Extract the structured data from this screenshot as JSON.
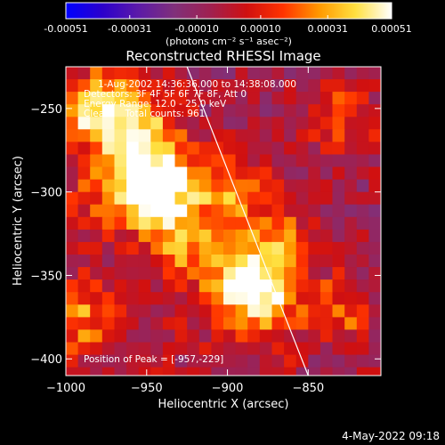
{
  "chart_data": {
    "type": "heatmap",
    "title": "Reconstructed RHESSI Image",
    "xlabel": "Heliocentric X (arcsec)",
    "ylabel": "Heliocentric Y (arcsec)",
    "xlim": [
      -1000,
      -805
    ],
    "ylim": [
      -410,
      -225
    ],
    "xticks": [
      -1000,
      -950,
      -900,
      -850
    ],
    "yticks": [
      -250,
      -300,
      -350,
      -400
    ],
    "colorbar": {
      "ticks": [
        -0.00051,
        -0.00031,
        -0.0001,
        0.0001,
        0.00031,
        0.00051
      ],
      "tick_labels": [
        "-0.00051",
        "-0.00031",
        "-0.00010",
        "0.00010",
        "0.00031",
        "0.00051"
      ],
      "unit_label": "(photons cm⁻² s⁻¹ asec⁻²)",
      "range": [
        -0.00051,
        0.00051
      ],
      "colors": [
        "#0000ff",
        "#2b00cc",
        "#5c1aa8",
        "#80307a",
        "#a02050",
        "#d01010",
        "#ff3300",
        "#ff9900",
        "#ffe040",
        "#ffffff"
      ]
    },
    "annotations": [
      "1-Aug-2002 14:36:36.000 to 14:38:08.000",
      "Detectors: 3F 4F 5F 6F 7F 8F, Att 0",
      "Energy Range: 12.0 - 25.0 keV",
      "Clean     Total counts: 961.",
      "Position of Peak = [-957,-229]"
    ],
    "peak": {
      "x": -957,
      "y": -229
    },
    "limb_line": [
      {
        "x": -925,
        "y": -225
      },
      {
        "x": -850,
        "y": -410
      }
    ],
    "bright_regions": [
      {
        "x": -980,
        "y": -250,
        "intensity": 0.00045
      },
      {
        "x": -945,
        "y": -288,
        "intensity": 0.00051
      },
      {
        "x": -940,
        "y": -305,
        "intensity": 0.00048
      },
      {
        "x": -960,
        "y": -265,
        "intensity": 0.00035
      },
      {
        "x": -925,
        "y": -330,
        "intensity": 0.0003
      },
      {
        "x": -890,
        "y": -355,
        "intensity": 0.00045
      },
      {
        "x": -875,
        "y": -365,
        "intensity": 0.00035
      },
      {
        "x": -895,
        "y": -300,
        "intensity": 0.0003
      },
      {
        "x": -870,
        "y": -330,
        "intensity": 0.00028
      },
      {
        "x": -990,
        "y": -375,
        "intensity": 0.00025
      },
      {
        "x": -975,
        "y": -300,
        "intensity": 0.00025
      },
      {
        "x": -830,
        "y": -255,
        "intensity": 0.00025
      },
      {
        "x": -830,
        "y": -370,
        "intensity": 0.00022
      }
    ]
  },
  "timestamp": "4-May-2022 09:18"
}
